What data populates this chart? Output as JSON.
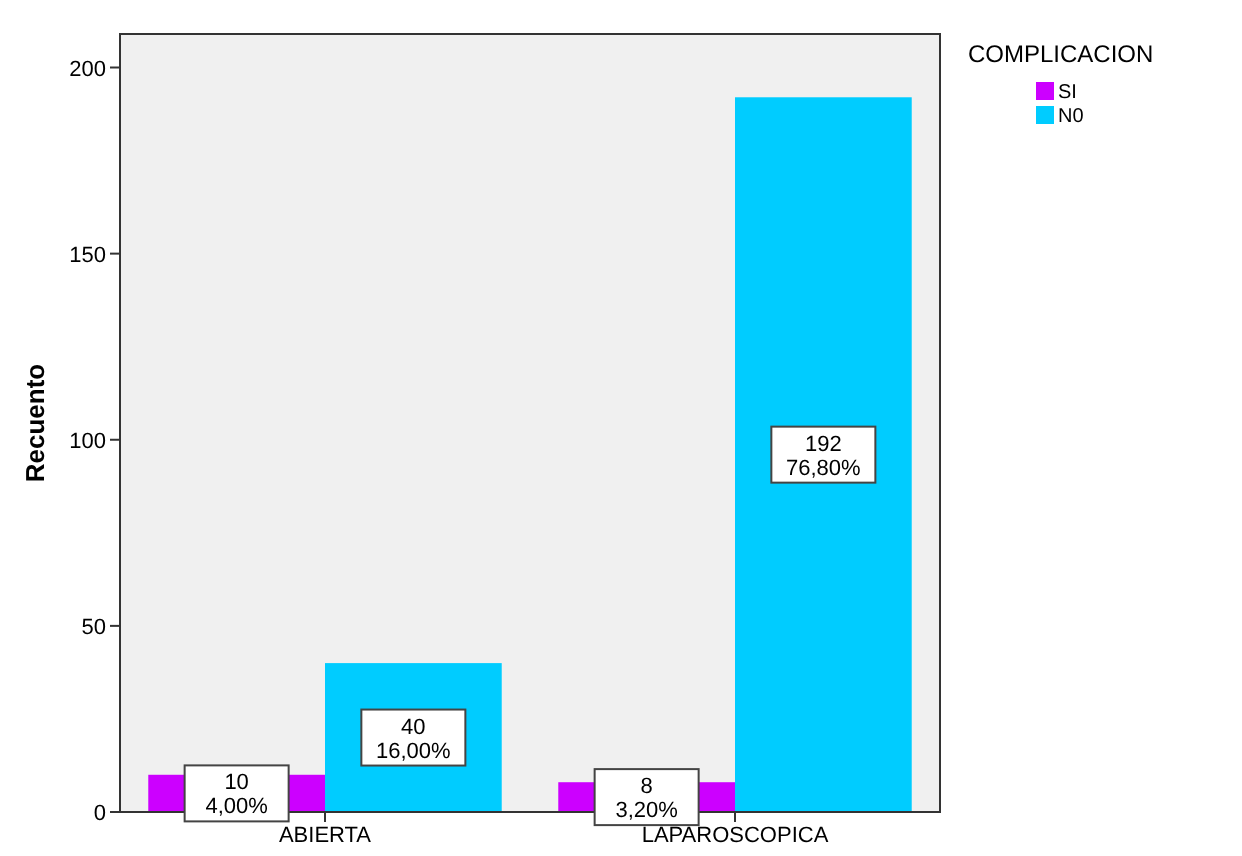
{
  "chart_data": {
    "type": "bar",
    "ylabel": "Recuento",
    "legend_title": "COMPLICACION",
    "categories": [
      "ABIERTA",
      "LAPAROSCOPICA"
    ],
    "series": [
      {
        "name": "SI",
        "color": "#cc00ff",
        "values": [
          10,
          8
        ],
        "value_labels": [
          "10\n4,00%",
          "8\n3,20%"
        ]
      },
      {
        "name": "N0",
        "color": "#00ccff",
        "values": [
          40,
          192
        ],
        "value_labels": [
          "40\n16,00%",
          "192\n76,80%"
        ]
      }
    ],
    "ylim": [
      0,
      209
    ],
    "yticks": [
      0,
      50,
      100,
      150,
      200
    ],
    "grid": false,
    "legend": "right"
  }
}
